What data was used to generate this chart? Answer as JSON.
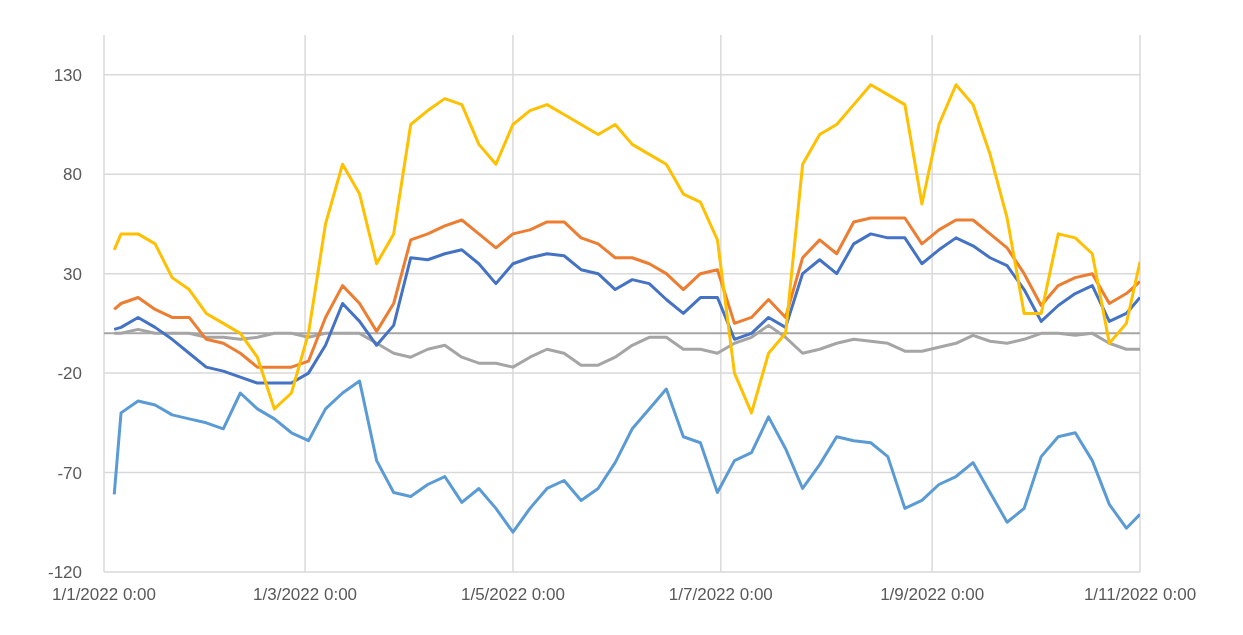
{
  "chart_data": {
    "type": "line",
    "x": [
      "2022-01-04",
      "2022-01-06",
      "2022-01-11",
      "2022-01-16",
      "2022-01-21",
      "2022-01-26",
      "2022-01-31",
      "2022-02-05",
      "2022-02-10",
      "2022-02-15",
      "2022-02-20",
      "2022-02-25",
      "2022-03-02",
      "2022-03-07",
      "2022-03-12",
      "2022-03-17",
      "2022-03-22",
      "2022-03-27",
      "2022-04-01",
      "2022-04-06",
      "2022-04-11",
      "2022-04-16",
      "2022-04-21",
      "2022-04-26",
      "2022-05-01",
      "2022-05-06",
      "2022-05-11",
      "2022-05-16",
      "2022-05-21",
      "2022-05-26",
      "2022-05-31",
      "2022-06-05",
      "2022-06-10",
      "2022-06-15",
      "2022-06-20",
      "2022-06-25",
      "2022-06-30",
      "2022-07-05",
      "2022-07-10",
      "2022-07-15",
      "2022-07-20",
      "2022-07-25",
      "2022-07-30",
      "2022-08-04",
      "2022-08-09",
      "2022-08-14",
      "2022-08-19",
      "2022-08-24",
      "2022-08-29",
      "2022-09-03",
      "2022-09-08",
      "2022-09-13",
      "2022-09-18",
      "2022-09-23",
      "2022-09-28",
      "2022-10-03",
      "2022-10-08",
      "2022-10-13",
      "2022-10-18",
      "2022-10-23",
      "2022-10-28",
      "2022-11-01"
    ],
    "series": [
      {
        "color": "#5b9bd5",
        "values": [
          -81,
          -40,
          -34,
          -36,
          -41,
          -43,
          -45,
          -48,
          -30,
          -38,
          -43,
          -50,
          -54,
          -38,
          -30,
          -24,
          -64,
          -80,
          -82,
          -76,
          -72,
          -85,
          -78,
          -88,
          -100,
          -88,
          -78,
          -74,
          -84,
          -78,
          -65,
          -48,
          -38,
          -28,
          -52,
          -55,
          -80,
          -64,
          -60,
          -42,
          -58,
          -78,
          -66,
          -52,
          -54,
          -55,
          -62,
          -88,
          -84,
          -76,
          -72,
          -65,
          -80,
          -95,
          -88,
          -62,
          -52,
          -50,
          -64,
          -86,
          -98,
          -91
        ]
      },
      {
        "color": "#a5a5a5",
        "values": [
          0,
          0,
          2,
          0,
          0,
          0,
          -2,
          -2,
          -3,
          -2,
          0,
          0,
          -2,
          0,
          0,
          0,
          -5,
          -10,
          -12,
          -8,
          -6,
          -12,
          -15,
          -15,
          -17,
          -12,
          -8,
          -10,
          -16,
          -16,
          -12,
          -6,
          -2,
          -2,
          -8,
          -8,
          -10,
          -5,
          -2,
          4,
          -2,
          -10,
          -8,
          -5,
          -3,
          -4,
          -5,
          -9,
          -9,
          -7,
          -5,
          -1,
          -4,
          -5,
          -3,
          0,
          0,
          -1,
          0,
          -5,
          -8,
          -8
        ]
      },
      {
        "color": "#4472c4",
        "values": [
          2,
          3,
          8,
          3,
          -3,
          -10,
          -17,
          -19,
          -22,
          -25,
          -25,
          -25,
          -20,
          -6,
          15,
          6,
          -6,
          4,
          38,
          37,
          40,
          42,
          35,
          25,
          35,
          38,
          40,
          39,
          32,
          30,
          22,
          27,
          25,
          17,
          10,
          18,
          18,
          -3,
          0,
          8,
          3,
          30,
          37,
          30,
          45,
          50,
          48,
          48,
          35,
          42,
          48,
          44,
          38,
          34,
          22,
          6,
          14,
          20,
          24,
          6,
          10,
          18
        ]
      },
      {
        "color": "#ed7d31",
        "values": [
          12,
          15,
          18,
          12,
          8,
          8,
          -3,
          -5,
          -10,
          -17,
          -17,
          -17,
          -14,
          8,
          24,
          15,
          1,
          15,
          47,
          50,
          54,
          57,
          50,
          43,
          50,
          52,
          56,
          56,
          48,
          45,
          38,
          38,
          35,
          30,
          22,
          30,
          32,
          5,
          8,
          17,
          8,
          38,
          47,
          40,
          56,
          58,
          58,
          58,
          45,
          52,
          57,
          57,
          50,
          43,
          30,
          14,
          24,
          28,
          30,
          15,
          20,
          26
        ]
      },
      {
        "color": "#ffc000",
        "values": [
          42,
          50,
          50,
          45,
          28,
          22,
          10,
          5,
          0,
          -12,
          -38,
          -30,
          0,
          55,
          85,
          70,
          35,
          50,
          105,
          112,
          118,
          115,
          95,
          85,
          105,
          112,
          115,
          110,
          105,
          100,
          105,
          95,
          90,
          85,
          70,
          66,
          47,
          -20,
          -40,
          -10,
          0,
          85,
          100,
          105,
          115,
          125,
          120,
          115,
          65,
          105,
          125,
          115,
          90,
          58,
          10,
          10,
          50,
          48,
          40,
          -5,
          5,
          36
        ]
      }
    ],
    "xlim": [
      "2022-01-01",
      "2022-11-01"
    ],
    "xticks": [
      {
        "value": "2022-01-01",
        "label": "1/1/2022 0:00"
      },
      {
        "value": "2022-03-01",
        "label": "1/3/2022 0:00"
      },
      {
        "value": "2022-05-01",
        "label": "1/5/2022 0:00"
      },
      {
        "value": "2022-07-01",
        "label": "1/7/2022 0:00"
      },
      {
        "value": "2022-09-01",
        "label": "1/9/2022 0:00"
      },
      {
        "value": "2022-11-01",
        "label": "1/11/2022 0:00"
      }
    ],
    "ylim": [
      -120,
      150
    ],
    "yticks": [
      -120,
      -70,
      -20,
      30,
      80,
      130
    ],
    "ref_lines": [
      {
        "axis": "y",
        "value": 0,
        "color": "#a6a6a6"
      }
    ],
    "grid": true,
    "legend": false,
    "marker": "none",
    "line_style": "solid"
  }
}
